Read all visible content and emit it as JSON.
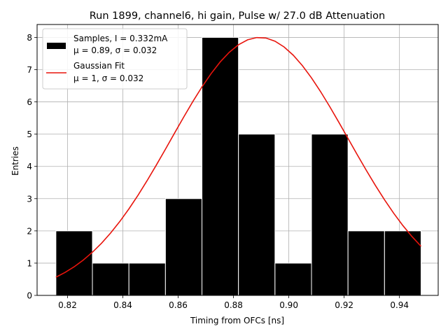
{
  "chart_data": {
    "type": "bar",
    "title": "Run 1899, channel6, hi gain, Pulse w/ 27.0 dB Attenuation",
    "xlabel": "Timing from OFCs [ns]",
    "ylabel": "Entries",
    "xlim": [
      0.809,
      0.954
    ],
    "ylim": [
      0,
      8.4
    ],
    "xticks": [
      0.82,
      0.84,
      0.86,
      0.88,
      0.9,
      0.92,
      0.94
    ],
    "xtick_labels": [
      "0.82",
      "0.84",
      "0.86",
      "0.88",
      "0.90",
      "0.92",
      "0.94"
    ],
    "yticks": [
      0,
      1,
      2,
      3,
      4,
      5,
      6,
      7,
      8
    ],
    "ytick_labels": [
      "0",
      "1",
      "2",
      "3",
      "4",
      "5",
      "6",
      "7",
      "8"
    ],
    "grid": true,
    "bins": [
      0.8158,
      0.829,
      0.8422,
      0.8554,
      0.8686,
      0.8818,
      0.895,
      0.9082,
      0.9214,
      0.9346,
      0.9478
    ],
    "counts": [
      2,
      1,
      1,
      3,
      8,
      5,
      1,
      5,
      2,
      2
    ],
    "bar_color": "#000000",
    "bar_edge_color": "#ffffff",
    "fit": {
      "type": "gaussian",
      "amplitude": 8.0,
      "mean": 0.8895,
      "sigma": 0.032,
      "x_range": [
        0.8158,
        0.9478
      ],
      "color": "#e8140c"
    },
    "legend": {
      "placement": "top-left",
      "entries": [
        {
          "kind": "bar",
          "line1": "Samples, I = 0.332mA",
          "line2_prefix": "μ = 0.89, ",
          "line2_suffix": "σ = 0.032"
        },
        {
          "kind": "line",
          "line1": "Gaussian Fit",
          "line2_prefix": "μ = 1, ",
          "line2_suffix": "σ = 0.032"
        }
      ]
    }
  }
}
